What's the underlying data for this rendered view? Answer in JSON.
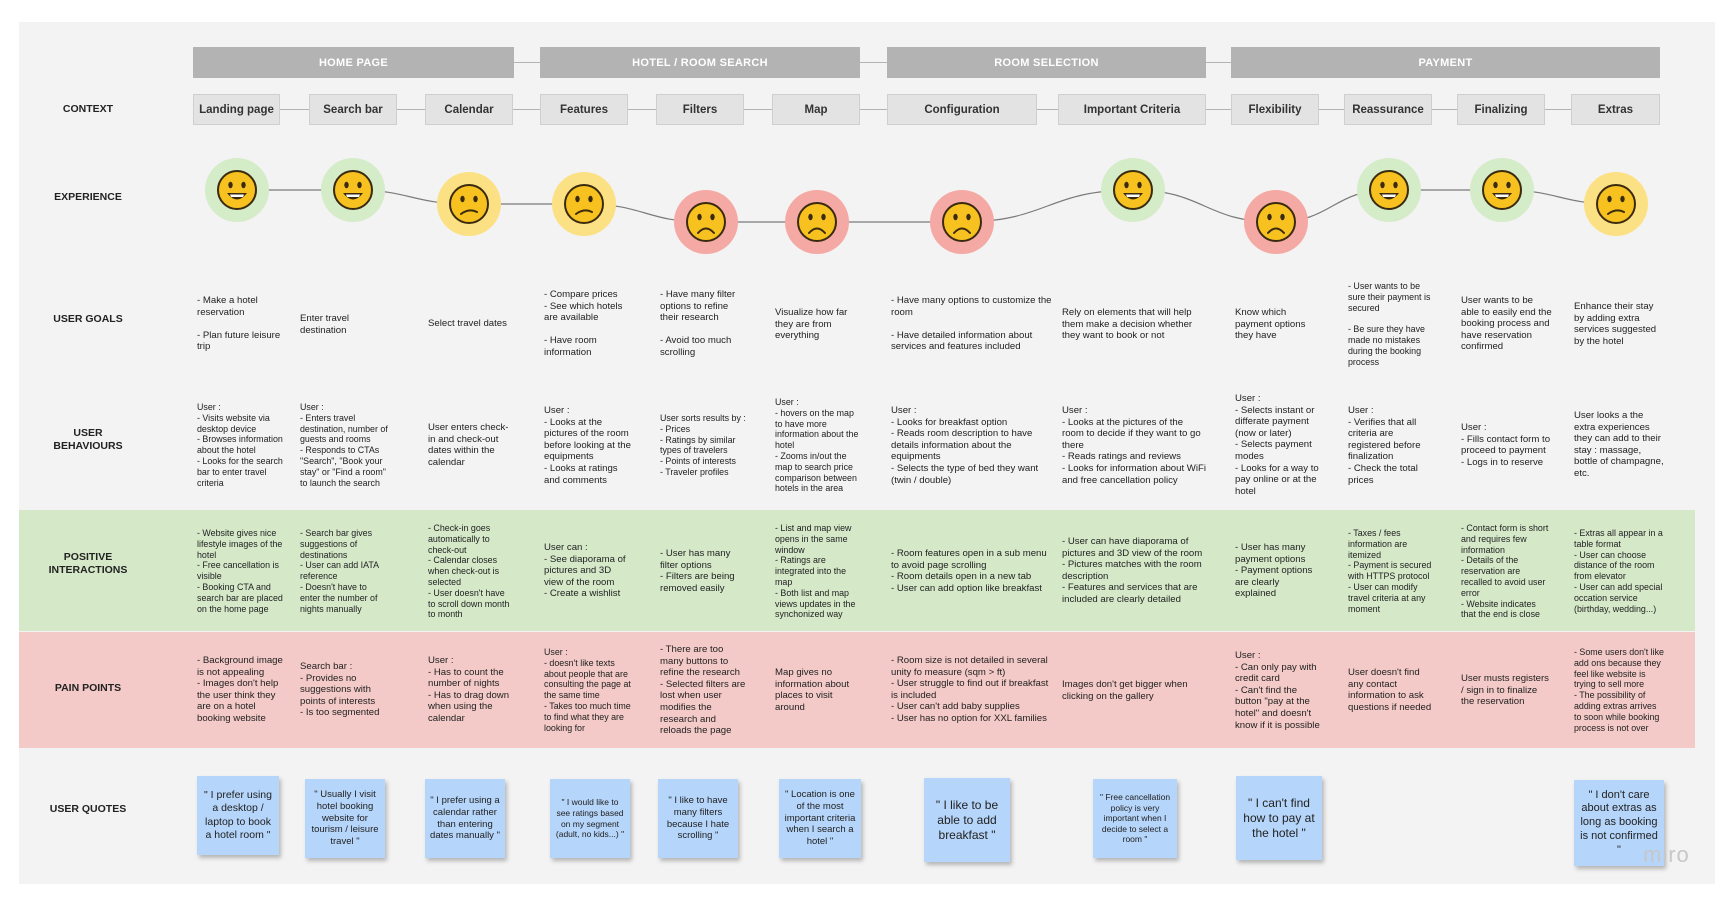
{
  "phases": [
    {
      "label": "HOME PAGE"
    },
    {
      "label": "HOTEL / ROOM SEARCH"
    },
    {
      "label": "ROOM SELECTION"
    },
    {
      "label": "PAYMENT"
    }
  ],
  "row_labels": {
    "context": "CONTEXT",
    "experience": "EXPERIENCE",
    "goals": "USER GOALS",
    "behaviours": "USER\nBEHAVIOURS",
    "positive": "POSITIVE\nINTERACTIONS",
    "pain": "PAIN POINTS",
    "quotes": "USER QUOTES"
  },
  "contexts": [
    "Landing page",
    "Search bar",
    "Calendar",
    "Features",
    "Filters",
    "Map",
    "Configuration",
    "Important Criteria",
    "Flexibility",
    "Reassurance",
    "Finalizing",
    "Extras"
  ],
  "experience": {
    "scale": {
      "happy": 3,
      "neutral": 2,
      "sad": 1
    },
    "moods": [
      "happy",
      "happy",
      "neutral",
      "neutral",
      "sad",
      "sad",
      "sad",
      "happy",
      "sad",
      "happy",
      "happy",
      "neutral"
    ],
    "colors": {
      "happy": "#d5ecc9",
      "neutral": "#fbe184",
      "sad": "#f5a9a4",
      "line": "#7a7a7a",
      "face": "#f7c21f"
    }
  },
  "goals": [
    "- Make a hotel reservation\n\n- Plan future leisure trip",
    "Enter travel destination",
    "Select travel dates",
    "- Compare prices\n- See which hotels are available\n\n- Have room information",
    "- Have many filter options to refine their research\n\n- Avoid too much scrolling",
    "Visualize how far they are from everything",
    "- Have many options to customize the room\n\n- Have detailed information about services and features included",
    "Rely on elements that will help them make a decision whether they want to book or not",
    "Know which payment options they have",
    "- User wants to be sure their payment is secured\n\n- Be sure they have made no mistakes during the booking process",
    "User wants to be able to easily end the booking process and have reservation confirmed",
    "Enhance their stay by adding extra services suggested by the hotel"
  ],
  "behaviours": [
    "User :\n- Visits website via desktop device\n- Browses information about the hotel\n- Looks for the search bar to enter travel criteria",
    "User :\n- Enters travel destination, number of guests and rooms\n- Responds to CTAs \"Search\", \"Book your stay\" or \"Find a room\" to launch the search",
    "User enters check-in and check-out dates within the calendar",
    "User :\n- Looks at the pictures of the room before looking at the equipments\n- Looks at ratings and comments",
    "User sorts results by :\n- Prices\n- Ratings by similar types of travelers\n- Points of interests\n- Traveler profiles",
    "User :\n- hovers on the map to have more information about the hotel\n- Zooms in/out the map to search price comparison between hotels in the area",
    "User :\n- Looks for breakfast option\n- Reads room description to have details information about the equipments\n- Selects the type of bed they want (twin / double)",
    "User :\n- Looks at the pictures of the room to decide if they want to go there\n- Reads ratings and reviews\n- Looks for information about WiFi and free cancellation policy",
    "User :\n- Selects instant or differate payment (now or later)\n- Selects payment modes\n- Looks for a way to pay online or at the hotel",
    "User :\n- Verifies that all criteria are registered before finalization\n- Check the total prices",
    "User :\n- Fills contact form to proceed to payment\n- Logs in to reserve",
    "User looks a the extra experiences they can add to their stay : massage, bottle of champagne, etc."
  ],
  "positive": [
    "- Website gives nice lifestyle images of the hotel\n- Free cancellation is visible\n- Booking CTA and search bar are placed on the home page",
    "- Search bar gives suggestions of destinations\n- User can add IATA reference\n- Doesn't have to enter the number of nights manually",
    "- Check-in goes automatically to check-out\n- Calendar closes when check-out is selected\n- User doesn't have to scroll down month to month",
    "User can :\n- See diaporama of pictures and 3D view of the room\n- Create a wishlist",
    "- User has many filter options\n- Filters are being removed easily",
    "- List and map view opens in the same window\n- Ratings are integrated into the map\n- Both list and map views updates in the synchonized way",
    "- Room features open in a sub menu to avoid page scrolling\n- Room details open in a new tab\n- User can add option like breakfast",
    "- User can have diaporama of pictures and 3D view of the room\n- Pictures matches with the room description\n- Features and services that are included are clearly detailed",
    "- User has many payment options\n- Payment options are clearly explained",
    "- Taxes / fees information are itemized\n- Payment is secured with HTTPS protocol\n- User can modify travel criteria at any moment",
    "- Contact form is short and requires few information\n- Details of the reservation are recalled to avoid user error\n- Website indicates that the end is close",
    "- Extras all appear in a table format\n- User can choose distance of the room from elevator\n- User can add special occation service (birthday, wedding...)"
  ],
  "pain": [
    "- Background image is not appealing\n- Images don't help the user think they are on a hotel booking website",
    "Search bar :\n- Provides no suggestions with points of interests\n- Is too segmented",
    "User :\n- Has to count the number of nights\n- Has to drag down when using the calendar",
    "User :\n- doesn't like texts about people that are consulting the page at the same time\n- Takes too much time to find what they are looking for",
    "- There are too many buttons to refine the research\n- Selected filters are lost when user modifies the research and reloads the page",
    "Map gives no information about places to visit around",
    "- Room size is not detailed in several unity fo measure (sqm > ft)\n- User struggle to find out if breakfast is included\n- User can't add baby supplies\n- User has no option for XXL families",
    "Images don't get bigger when clicking on the gallery",
    "User :\n- Can only pay with credit card\n- Can't find the button \"pay at the hotel\" and doesn't know if it is possible",
    "User doesn't find any contact information to ask questions if needed",
    "User musts registers / sign in to finalize the reservation",
    "- Some users don't like add ons because they feel like website is trying to sell more\n- The possibility of adding extras arrives to soon while booking process is not over"
  ],
  "quotes": [
    "\" I prefer using a desktop / laptop to book a hotel room \"",
    "\" Usually I visit hotel booking website for tourism / leisure travel \"",
    "\" I prefer using a calendar rather than entering dates manually \"",
    "\" I would like to see ratings based on my segment (adult, no kids...) \"",
    "\" I like to have many filters because I hate scrolling \"",
    "\" Location is one of the most important criteria when I search a hotel \"",
    "\" I like to be able to add breakfast \"",
    "\" Free cancellation policy is very important when I decide to select a room \"",
    "\" I can't find how to pay at the hotel \"",
    "",
    "",
    "\" I don't care about extras as long as booking is not confirmed \""
  ],
  "watermark": "miro"
}
